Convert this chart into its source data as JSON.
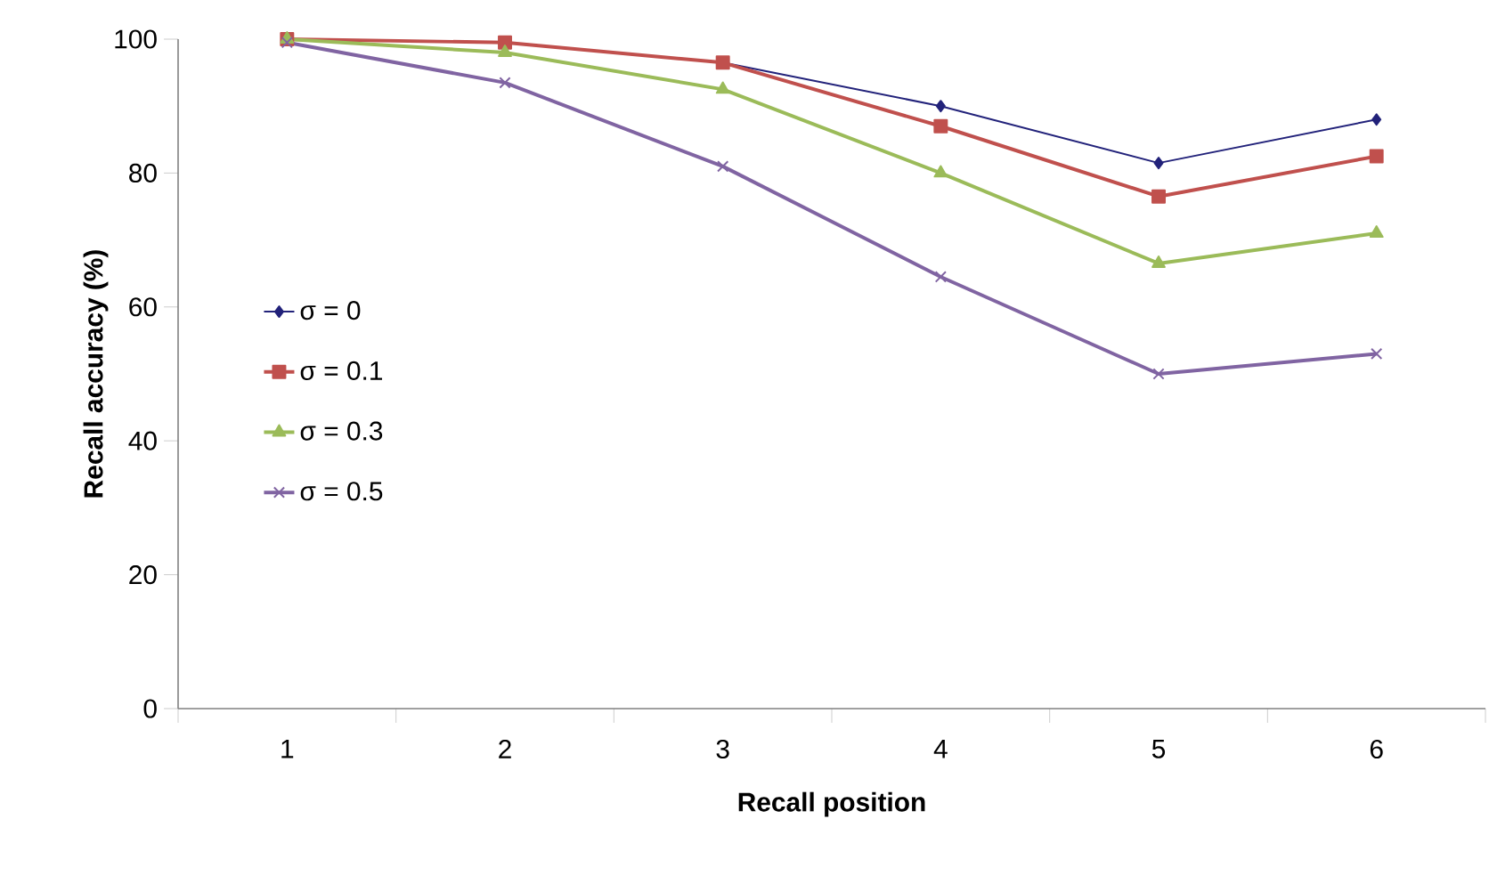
{
  "chart_data": {
    "type": "line",
    "xlabel": "Recall position",
    "ylabel": "Recall accuracy (%)",
    "categories": [
      "1",
      "2",
      "3",
      "4",
      "5",
      "6"
    ],
    "ylim": [
      0,
      100
    ],
    "yticks": [
      0,
      20,
      40,
      60,
      80,
      100
    ],
    "grid": false,
    "legend": "left",
    "series": [
      {
        "name": "σ = 0",
        "color": "#22227a",
        "marker": "diamond",
        "values": [
          100,
          99.5,
          96.5,
          90,
          81.5,
          88
        ]
      },
      {
        "name": "σ = 0.1",
        "color": "#c0504d",
        "marker": "square",
        "values": [
          100,
          99.5,
          96.5,
          87,
          76.5,
          82.5
        ]
      },
      {
        "name": "σ = 0.3",
        "color": "#9bbb59",
        "marker": "triangle",
        "values": [
          100,
          98,
          92.5,
          80,
          66.5,
          71
        ]
      },
      {
        "name": "σ = 0.5",
        "color": "#8064a2",
        "marker": "cross",
        "values": [
          99.5,
          93.5,
          81,
          64.5,
          50,
          53
        ]
      }
    ]
  }
}
